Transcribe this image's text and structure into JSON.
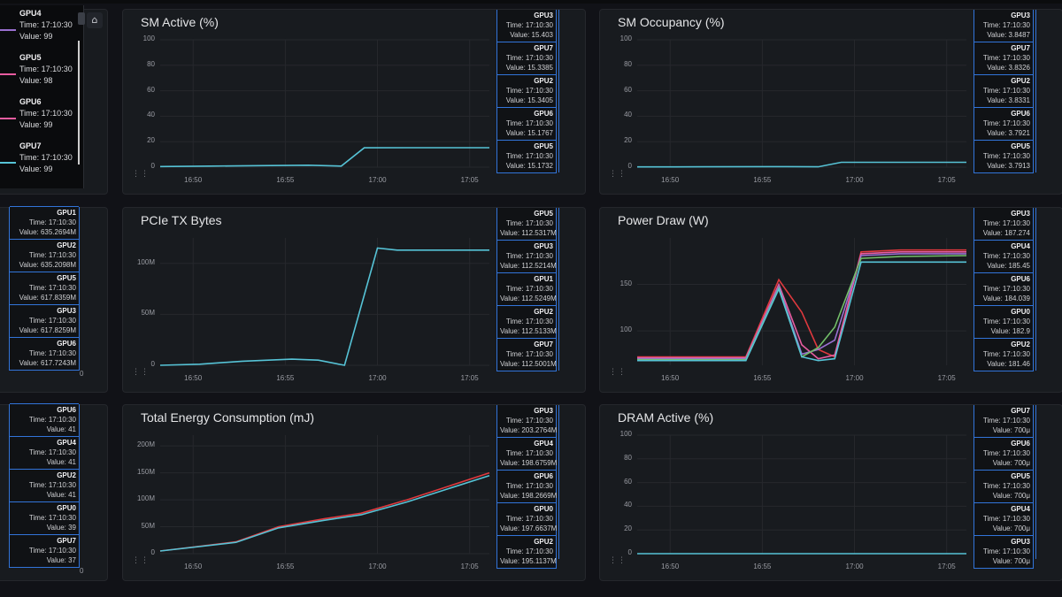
{
  "tooltip_time": "Time: 17:10:30",
  "colors": {
    "primary_line": "#56c3d6",
    "red": "#e0393e",
    "pink": "#e85ca0",
    "purple": "#9a70d0",
    "green": "#73bf69",
    "orange": "#ff9830",
    "blue": "#5794f2",
    "tooltip_border": "#3274d9"
  },
  "left_overlay": {
    "items": [
      {
        "gpu": "GPU4",
        "time": "Time: 17:10:30",
        "value": "Value: 99",
        "color": "#9a70d0"
      },
      {
        "gpu": "GPU5",
        "time": "Time: 17:10:30",
        "value": "Value: 98",
        "color": "#e85ca0"
      },
      {
        "gpu": "GPU6",
        "time": "Time: 17:10:30",
        "value": "Value: 99",
        "color": "#e85ca0"
      },
      {
        "gpu": "GPU7",
        "time": "Time: 17:10:30",
        "value": "Value: 99",
        "color": "#56c3d6"
      }
    ],
    "home_icon": "home-icon"
  },
  "left_mid_stack": [
    {
      "gpu": "GPU1",
      "value": "Value: 635.2694M"
    },
    {
      "gpu": "GPU2",
      "value": "Value: 635.2098M"
    },
    {
      "gpu": "GPU5",
      "value": "Value: 617.8359M"
    },
    {
      "gpu": "GPU3",
      "value": "Value: 617.8259M"
    },
    {
      "gpu": "GPU6",
      "value": "Value: 617.7243M"
    }
  ],
  "left_mid_tail": "0",
  "left_bot_stack": [
    {
      "gpu": "GPU6",
      "value": "Value: 41"
    },
    {
      "gpu": "GPU4",
      "value": "Value: 41"
    },
    {
      "gpu": "GPU2",
      "value": "Value: 41"
    },
    {
      "gpu": "GPU0",
      "value": "Value: 39"
    },
    {
      "gpu": "GPU7",
      "value": "Value: 37"
    }
  ],
  "left_bot_tail": "0",
  "panels": [
    {
      "title": "SM Active (%)",
      "yticks": [
        "100",
        "80",
        "60",
        "40",
        "20",
        "0"
      ],
      "xticks": [
        "16:50",
        "16:55",
        "17:00",
        "17:05"
      ],
      "tooltips": [
        {
          "gpu": "GPU3",
          "value": "Value: 15.403"
        },
        {
          "gpu": "GPU7",
          "value": "Value: 15.3385"
        },
        {
          "gpu": "GPU2",
          "value": "Value: 15.3405"
        },
        {
          "gpu": "GPU6",
          "value": "Value: 15.1767"
        },
        {
          "gpu": "GPU5",
          "value": "Value: 15.1732"
        }
      ],
      "chart_data": {
        "type": "line",
        "ylim": [
          0,
          100
        ],
        "x": [
          0,
          0.15,
          0.3,
          0.45,
          0.55,
          0.62,
          0.75,
          0.9,
          1.0
        ],
        "series": [
          {
            "values": [
              0.5,
              0.8,
              1.2,
              1.5,
              0.8,
              15.2,
              15.3,
              15.3,
              15.3
            ]
          }
        ]
      }
    },
    {
      "title": "SM Occupancy (%)",
      "yticks": [
        "100",
        "80",
        "60",
        "40",
        "20",
        "0"
      ],
      "xticks": [
        "16:50",
        "16:55",
        "17:00",
        "17:05"
      ],
      "tooltips": [
        {
          "gpu": "GPU3",
          "value": "Value: 3.8487"
        },
        {
          "gpu": "GPU7",
          "value": "Value: 3.8326"
        },
        {
          "gpu": "GPU2",
          "value": "Value: 3.8331"
        },
        {
          "gpu": "GPU6",
          "value": "Value: 3.7921"
        },
        {
          "gpu": "GPU5",
          "value": "Value: 3.7913"
        }
      ],
      "chart_data": {
        "type": "line",
        "ylim": [
          0,
          100
        ],
        "x": [
          0,
          0.2,
          0.4,
          0.55,
          0.62,
          0.75,
          1.0
        ],
        "series": [
          {
            "values": [
              0.2,
              0.3,
              0.4,
              0.3,
              3.8,
              3.8,
              3.8
            ]
          }
        ]
      }
    },
    {
      "title": "PCIe TX Bytes",
      "yticks": [
        "100M",
        "50M",
        "0"
      ],
      "xticks": [
        "16:50",
        "16:55",
        "17:00",
        "17:05"
      ],
      "tooltips": [
        {
          "gpu": "GPU5",
          "value": "Value: 112.5317M"
        },
        {
          "gpu": "GPU3",
          "value": "Value: 112.5214M"
        },
        {
          "gpu": "GPU1",
          "value": "Value: 112.5249M"
        },
        {
          "gpu": "GPU2",
          "value": "Value: 112.5133M"
        },
        {
          "gpu": "GPU7",
          "value": "Value: 112.5001M"
        }
      ],
      "chart_data": {
        "type": "line",
        "ylim": [
          0,
          125
        ],
        "x": [
          0,
          0.12,
          0.25,
          0.4,
          0.48,
          0.56,
          0.66,
          0.72,
          0.85,
          1.0
        ],
        "series": [
          {
            "values": [
              0,
              1,
              4,
              6,
              5,
              0,
              115,
              113,
              113,
              113
            ]
          }
        ]
      }
    },
    {
      "title": "Power Draw (W)",
      "yticks": [
        "150",
        "100"
      ],
      "xticks": [
        "16:50",
        "16:55",
        "17:00",
        "17:05"
      ],
      "tooltips": [
        {
          "gpu": "GPU3",
          "value": "Value: 187.274"
        },
        {
          "gpu": "GPU4",
          "value": "Value: 185.45"
        },
        {
          "gpu": "GPU6",
          "value": "Value: 184.039"
        },
        {
          "gpu": "GPU0",
          "value": "Value: 182.9"
        },
        {
          "gpu": "GPU2",
          "value": "Value: 181.46"
        }
      ],
      "chart_data": {
        "type": "line",
        "ylim": [
          63,
          200
        ],
        "x": [
          0,
          0.2,
          0.33,
          0.43,
          0.5,
          0.55,
          0.6,
          0.68,
          0.8,
          1.0
        ],
        "series": [
          {
            "values": [
              72,
              72,
              72,
              155,
              120,
              80,
              72,
              185,
              187,
              187
            ]
          },
          {
            "values": [
              71,
              71,
              71,
              150,
              85,
              70,
              74,
              183,
              185,
              185
            ]
          },
          {
            "values": [
              70,
              70,
              70,
              148,
              75,
              80,
              90,
              181,
              183,
              183
            ]
          },
          {
            "values": [
              69,
              69,
              69,
              146,
              72,
              82,
              104,
              178,
              180,
              181
            ]
          },
          {
            "values": [
              68,
              68,
              68,
              145,
              72,
              68,
              70,
              174,
              174,
              174
            ]
          }
        ]
      },
      "series_colors": [
        "#e0393e",
        "#e85ca0",
        "#9a70d0",
        "#73bf69",
        "#56c3d6"
      ]
    },
    {
      "title": "Total Energy Consumption (mJ)",
      "yticks": [
        "200M",
        "150M",
        "100M",
        "50M",
        "0"
      ],
      "xticks": [
        "16:50",
        "16:55",
        "17:00",
        "17:05"
      ],
      "tooltips": [
        {
          "gpu": "GPU3",
          "value": "Value: 203.2764M"
        },
        {
          "gpu": "GPU4",
          "value": "Value: 198.6759M"
        },
        {
          "gpu": "GPU6",
          "value": "Value: 198.2669M"
        },
        {
          "gpu": "GPU0",
          "value": "Value: 197.6637M"
        },
        {
          "gpu": "GPU2",
          "value": "Value: 195.1137M"
        }
      ],
      "chart_data": {
        "type": "line",
        "ylim": [
          0,
          220
        ],
        "x": [
          0,
          0.23,
          0.36,
          0.5,
          0.61,
          0.75,
          1.0
        ],
        "series": [
          {
            "values": [
              5,
              22,
              50,
              65,
              75,
              100,
              150
            ]
          },
          {
            "values": [
              5,
              21,
              48,
              62,
              72,
              96,
              145
            ]
          }
        ]
      },
      "series_colors": [
        "#e0393e",
        "#56c3d6"
      ]
    },
    {
      "title": "DRAM Active (%)",
      "yticks": [
        "100",
        "80",
        "60",
        "40",
        "20",
        "0"
      ],
      "xticks": [
        "16:50",
        "16:55",
        "17:00",
        "17:05"
      ],
      "tooltips": [
        {
          "gpu": "GPU7",
          "value": "Value: 700μ"
        },
        {
          "gpu": "GPU6",
          "value": "Value: 700μ"
        },
        {
          "gpu": "GPU5",
          "value": "Value: 700μ"
        },
        {
          "gpu": "GPU4",
          "value": "Value: 700μ"
        },
        {
          "gpu": "GPU3",
          "value": "Value: 700μ"
        }
      ],
      "chart_data": {
        "type": "line",
        "ylim": [
          0,
          100
        ],
        "x": [
          0,
          1.0
        ],
        "series": [
          {
            "values": [
              0,
              0
            ]
          }
        ]
      }
    }
  ]
}
